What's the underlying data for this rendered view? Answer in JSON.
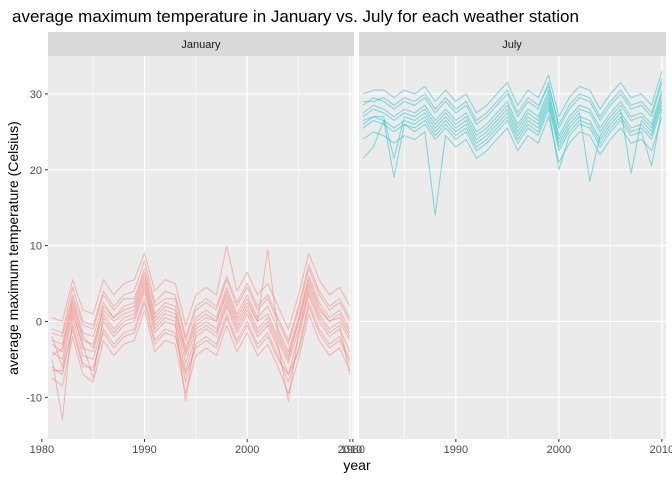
{
  "chart_data": {
    "type": "line",
    "title": "average maximum temperature in January vs. July for each weather station",
    "xlabel": "year",
    "ylabel": "average maximum temperature (Celsius)",
    "xlim": [
      1980.6,
      2010.4
    ],
    "ylim": [
      -15.5,
      35
    ],
    "x_ticks": [
      1980,
      1990,
      2000,
      2010
    ],
    "y_ticks": [
      -10,
      0,
      10,
      20,
      30
    ],
    "grid": true,
    "legend": "none",
    "colors": {
      "January": "#F8766D",
      "July": "#00BFC4",
      "panel_bg": "#EBEBEB",
      "strip_bg": "#D9D9D9",
      "grid": "#FFFFFF"
    },
    "years": [
      1981,
      1982,
      1983,
      1984,
      1985,
      1986,
      1987,
      1988,
      1989,
      1990,
      1991,
      1992,
      1993,
      1994,
      1995,
      1996,
      1997,
      1998,
      1999,
      2000,
      2001,
      2002,
      2003,
      2004,
      2005,
      2006,
      2007,
      2008,
      2009,
      2010
    ],
    "facets": [
      {
        "name": "January",
        "series": [
          {
            "values": [
              -4.0,
              -5.0,
              1.5,
              -3.5,
              -4.0,
              1.0,
              -1.0,
              0.5,
              1.0,
              5.0,
              -0.5,
              1.0,
              0.5,
              -5.5,
              -1.0,
              0.0,
              -1.0,
              3.0,
              -0.5,
              2.0,
              -1.0,
              0.5,
              -2.5,
              -5.5,
              -1.0,
              4.5,
              1.0,
              -1.0,
              0.0,
              -2.5
            ]
          },
          {
            "values": [
              -2.5,
              -3.0,
              3.0,
              -1.5,
              -2.0,
              2.5,
              0.5,
              2.0,
              2.5,
              6.5,
              1.0,
              2.5,
              2.0,
              -3.5,
              0.5,
              1.5,
              0.5,
              4.5,
              1.0,
              3.5,
              0.5,
              2.0,
              -1.0,
              -4.0,
              0.5,
              6.0,
              2.5,
              0.5,
              1.5,
              -1.0
            ]
          },
          {
            "values": [
              -6.0,
              -7.0,
              -0.5,
              -5.5,
              -6.5,
              -1.0,
              -3.0,
              -1.5,
              -1.0,
              3.0,
              -2.5,
              -1.0,
              -1.5,
              -8.0,
              -3.0,
              -2.0,
              -3.0,
              1.0,
              -2.5,
              0.0,
              -3.0,
              -1.5,
              -4.5,
              -8.0,
              -3.5,
              2.5,
              -1.0,
              -3.0,
              -2.0,
              -5.0
            ]
          },
          {
            "values": [
              -1.0,
              -1.5,
              4.5,
              0.0,
              -0.5,
              4.0,
              2.0,
              3.5,
              4.0,
              8.0,
              2.5,
              4.0,
              3.5,
              -2.0,
              2.0,
              3.0,
              2.0,
              6.0,
              2.5,
              5.0,
              2.0,
              3.5,
              0.5,
              -2.5,
              2.0,
              7.5,
              4.0,
              2.0,
              3.0,
              0.5
            ]
          },
          {
            "values": [
              -7.5,
              -8.5,
              -2.0,
              -7.0,
              -8.0,
              -2.5,
              -4.5,
              -3.0,
              -2.5,
              1.5,
              -4.0,
              -2.5,
              -3.0,
              -9.5,
              -4.5,
              -3.5,
              -4.5,
              -0.5,
              -4.0,
              -1.5,
              -4.5,
              -3.0,
              -6.0,
              -9.5,
              -5.0,
              1.0,
              -2.5,
              -4.5,
              -3.5,
              -6.5
            ]
          },
          {
            "values": [
              -3.0,
              -4.0,
              2.0,
              -2.5,
              -3.0,
              1.5,
              0.0,
              1.0,
              1.5,
              5.5,
              0.0,
              1.5,
              1.0,
              -4.5,
              -0.5,
              0.5,
              0.0,
              3.5,
              0.0,
              2.5,
              0.0,
              1.0,
              -2.0,
              -5.0,
              0.0,
              5.0,
              1.5,
              0.0,
              0.5,
              -2.0
            ]
          },
          {
            "values": [
              -5.0,
              -13.0,
              0.5,
              -4.5,
              -5.0,
              0.0,
              -2.0,
              -0.5,
              0.0,
              4.0,
              -1.5,
              0.0,
              -0.5,
              -6.5,
              -2.0,
              -1.0,
              -2.0,
              2.0,
              -1.5,
              1.0,
              -2.0,
              -0.5,
              -3.5,
              -7.0,
              -2.0,
              3.5,
              0.0,
              -2.0,
              -1.0,
              -4.0
            ]
          },
          {
            "values": [
              0.5,
              0.0,
              5.5,
              1.5,
              1.0,
              5.5,
              3.5,
              5.0,
              5.5,
              9.0,
              4.0,
              5.5,
              5.0,
              -0.5,
              3.5,
              4.5,
              3.5,
              10.0,
              4.0,
              6.5,
              3.5,
              5.0,
              2.0,
              -1.0,
              3.5,
              9.0,
              5.5,
              3.5,
              4.5,
              2.0
            ]
          },
          {
            "values": [
              -2.0,
              -6.0,
              1.0,
              -3.0,
              -7.5,
              0.5,
              -1.5,
              0.0,
              0.5,
              4.5,
              -1.0,
              0.5,
              0.0,
              -10.5,
              -1.5,
              -0.5,
              -1.5,
              2.5,
              -1.0,
              1.5,
              -1.5,
              0.0,
              -3.0,
              -10.5,
              -1.5,
              4.0,
              0.5,
              -1.5,
              -0.5,
              -7.0
            ]
          },
          {
            "values": [
              -4.5,
              -3.5,
              2.5,
              -2.0,
              -3.5,
              2.0,
              0.5,
              1.5,
              2.0,
              6.0,
              0.5,
              2.0,
              1.5,
              -4.0,
              0.0,
              1.0,
              0.0,
              4.0,
              0.5,
              3.0,
              0.0,
              9.5,
              -1.5,
              -4.5,
              0.0,
              5.5,
              2.0,
              0.0,
              1.0,
              -1.5
            ]
          },
          {
            "values": [
              -6.5,
              -6.5,
              -1.0,
              -6.0,
              -6.0,
              -1.5,
              -3.5,
              -2.0,
              -1.5,
              2.5,
              -3.0,
              -1.5,
              -2.0,
              -7.0,
              -3.5,
              -2.5,
              -3.5,
              0.5,
              -3.0,
              -0.5,
              -3.5,
              -2.0,
              -5.0,
              -7.0,
              -4.0,
              2.0,
              -1.5,
              -3.5,
              -2.5,
              -5.5
            ]
          },
          {
            "values": [
              -1.5,
              -2.0,
              3.5,
              -0.5,
              -1.0,
              3.5,
              1.5,
              3.0,
              3.0,
              7.0,
              2.0,
              3.0,
              3.0,
              -2.5,
              1.5,
              2.5,
              1.5,
              5.5,
              2.0,
              4.5,
              1.5,
              3.0,
              0.0,
              -3.0,
              1.5,
              7.0,
              3.5,
              1.5,
              2.5,
              0.0
            ]
          }
        ]
      },
      {
        "name": "July",
        "series": [
          {
            "values": [
              27.0,
              28.0,
              27.5,
              26.5,
              27.5,
              27.0,
              28.0,
              26.0,
              27.5,
              26.0,
              27.0,
              24.5,
              25.5,
              27.0,
              28.5,
              25.5,
              27.5,
              26.5,
              30.0,
              24.0,
              26.5,
              28.0,
              27.5,
              25.0,
              27.0,
              28.5,
              26.5,
              27.0,
              25.5,
              30.0
            ]
          },
          {
            "values": [
              28.5,
              29.5,
              29.0,
              28.0,
              29.0,
              28.5,
              29.5,
              27.5,
              29.0,
              27.5,
              28.5,
              26.0,
              27.0,
              28.5,
              30.0,
              27.0,
              29.0,
              28.0,
              31.5,
              25.5,
              28.0,
              29.5,
              29.0,
              26.5,
              28.5,
              30.0,
              28.0,
              28.5,
              27.0,
              31.5
            ]
          },
          {
            "values": [
              25.5,
              26.5,
              26.0,
              25.0,
              26.0,
              25.5,
              26.5,
              24.5,
              26.0,
              24.5,
              25.5,
              23.0,
              24.0,
              25.5,
              27.0,
              24.0,
              26.0,
              25.0,
              28.5,
              22.5,
              25.0,
              26.5,
              26.0,
              23.5,
              25.5,
              27.0,
              25.0,
              25.5,
              24.0,
              28.5
            ]
          },
          {
            "values": [
              30.0,
              30.5,
              30.5,
              29.5,
              30.5,
              30.0,
              31.0,
              29.0,
              30.5,
              29.0,
              30.0,
              27.5,
              28.5,
              30.0,
              31.5,
              28.5,
              30.5,
              29.5,
              32.5,
              27.0,
              29.5,
              31.0,
              30.5,
              28.0,
              30.0,
              31.5,
              29.5,
              30.0,
              28.5,
              33.0
            ]
          },
          {
            "values": [
              24.0,
              25.0,
              24.5,
              23.5,
              24.5,
              24.0,
              25.0,
              14.0,
              24.5,
              23.0,
              24.0,
              21.5,
              22.5,
              24.0,
              25.5,
              22.5,
              24.5,
              23.5,
              27.0,
              21.0,
              23.5,
              25.0,
              24.5,
              22.0,
              24.0,
              25.5,
              23.5,
              24.0,
              22.5,
              27.0
            ]
          },
          {
            "values": [
              26.5,
              27.0,
              27.0,
              21.5,
              27.0,
              26.5,
              27.5,
              25.5,
              27.0,
              25.5,
              26.5,
              24.0,
              25.0,
              26.5,
              28.0,
              25.0,
              27.0,
              26.0,
              29.5,
              23.5,
              26.0,
              27.5,
              18.5,
              24.5,
              26.5,
              28.0,
              19.5,
              26.5,
              25.0,
              29.5
            ]
          },
          {
            "values": [
              21.5,
              23.0,
              26.5,
              19.0,
              26.0,
              25.0,
              26.0,
              24.0,
              25.5,
              24.0,
              25.0,
              22.5,
              23.5,
              25.0,
              26.5,
              23.5,
              25.5,
              24.5,
              28.0,
              20.0,
              24.5,
              26.0,
              25.5,
              23.0,
              25.0,
              26.5,
              24.5,
              25.0,
              20.5,
              28.0
            ]
          },
          {
            "values": [
              29.0,
              29.0,
              29.5,
              28.5,
              29.5,
              29.0,
              30.0,
              28.0,
              29.5,
              28.0,
              29.0,
              26.5,
              27.5,
              29.0,
              30.5,
              27.5,
              29.5,
              28.5,
              31.0,
              26.0,
              28.5,
              30.0,
              29.5,
              27.0,
              29.0,
              30.5,
              28.5,
              29.0,
              27.5,
              32.0
            ]
          },
          {
            "values": [
              27.5,
              28.5,
              28.0,
              27.0,
              28.0,
              27.5,
              28.5,
              26.5,
              28.0,
              26.5,
              27.5,
              25.0,
              26.0,
              27.5,
              29.0,
              26.0,
              28.0,
              27.0,
              30.5,
              24.5,
              27.0,
              28.5,
              28.0,
              25.5,
              27.5,
              29.0,
              27.0,
              27.5,
              26.0,
              30.5
            ]
          },
          {
            "values": [
              26.0,
              27.0,
              26.5,
              25.5,
              26.5,
              26.0,
              27.0,
              25.0,
              26.5,
              25.0,
              26.0,
              23.5,
              24.5,
              26.0,
              27.5,
              24.5,
              26.5,
              25.5,
              29.0,
              23.0,
              25.5,
              27.0,
              26.5,
              24.0,
              26.0,
              27.5,
              25.5,
              26.0,
              24.5,
              29.0
            ]
          }
        ]
      }
    ]
  }
}
